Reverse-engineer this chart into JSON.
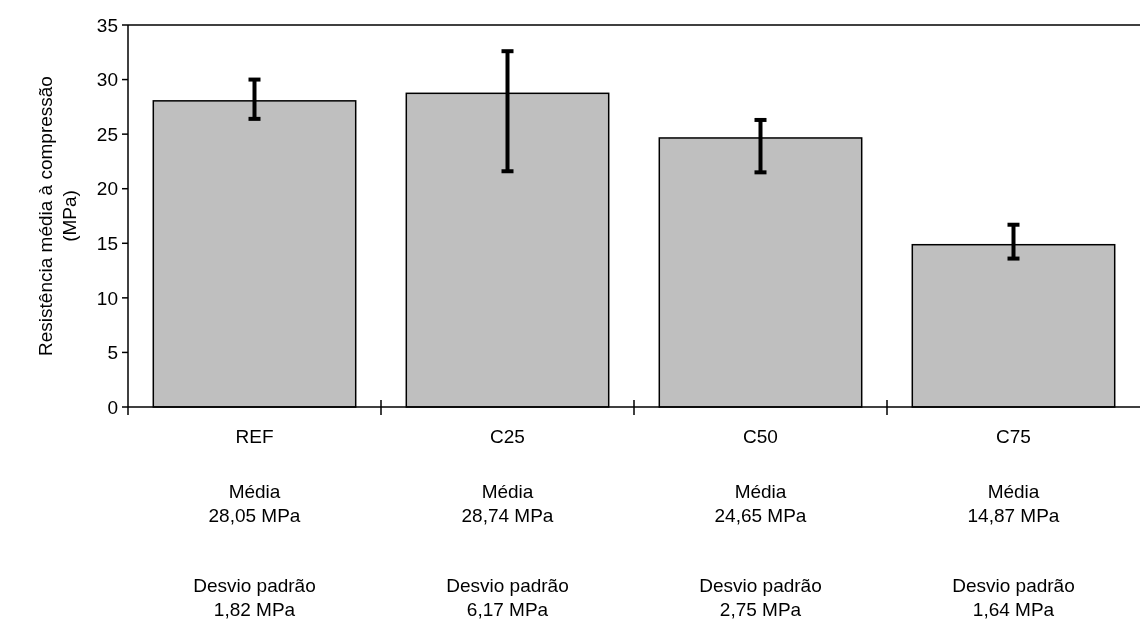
{
  "chart_data": {
    "type": "bar",
    "ylabel": "Resistência média à compressão\n(MPa)",
    "categories": [
      "REF",
      "C25",
      "C50",
      "C75"
    ],
    "series": [
      {
        "color": "#bfbfbf",
        "values": [
          28.05,
          28.74,
          24.65,
          14.87
        ],
        "errors": [
          [
            26.4,
            30.0
          ],
          [
            21.6,
            32.6
          ],
          [
            21.5,
            26.3
          ],
          [
            13.6,
            16.7
          ]
        ]
      }
    ],
    "ylim": [
      0,
      35
    ],
    "yticks": [
      0,
      5,
      10,
      15,
      20,
      25,
      30,
      35
    ],
    "grid": false,
    "annotations": [
      "Média\n28,05 MPa",
      "Desvio padrão\n1,82 MPa",
      "Média\n28,74 MPa",
      "Desvio padrão\n6,17 MPa",
      "Média\n24,65 MPa",
      "Desvio padrão\n2,75 MPa",
      "Média\n14,87 MPa",
      "Desvio padrão\n1,64 MPa"
    ]
  }
}
